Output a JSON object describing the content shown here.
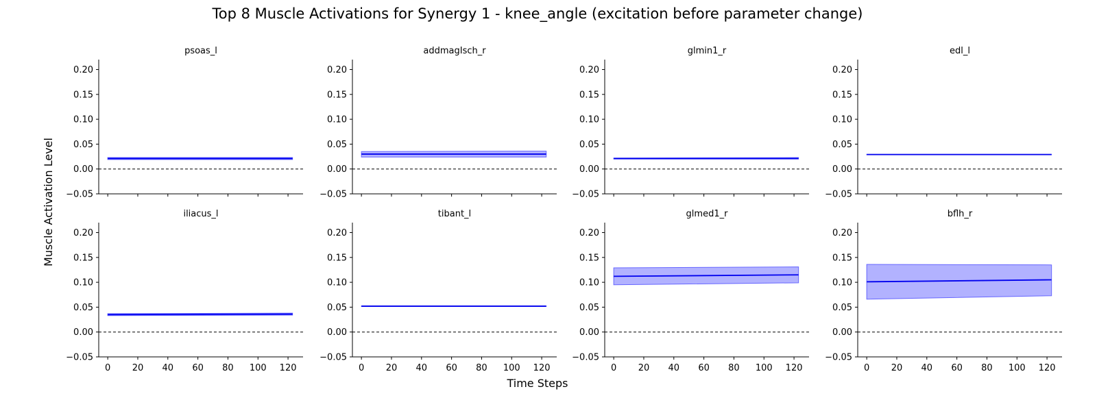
{
  "chart_data": {
    "type": "line",
    "title": "Top 8 Muscle Activations for Synergy 1 - knee_angle (excitation before parameter change)",
    "xlabel": "Time Steps",
    "ylabel": "Muscle Activation Level",
    "xlim": [
      -6,
      130
    ],
    "ylim": [
      -0.05,
      0.22
    ],
    "x_ticks": [
      0,
      20,
      40,
      60,
      80,
      100,
      120
    ],
    "y_ticks": [
      -0.05,
      0.0,
      0.05,
      0.1,
      0.15,
      0.2
    ],
    "y_tick_labels": [
      "−0.05",
      "0.00",
      "0.05",
      "0.10",
      "0.15",
      "0.20"
    ],
    "x_range": [
      0,
      123
    ],
    "reference_line": 0.0,
    "line_color": "#0000ee",
    "band_color": "#6666ff",
    "grid": false,
    "shared_x": true,
    "layout": {
      "rows": 2,
      "cols": 4
    },
    "subplots": [
      {
        "name": "psoas_l",
        "mean": [
          0.021,
          0.021
        ],
        "upper": [
          0.023,
          0.023
        ],
        "lower": [
          0.019,
          0.019
        ]
      },
      {
        "name": "addmagIsch_r",
        "mean": [
          0.03,
          0.03
        ],
        "upper": [
          0.035,
          0.036
        ],
        "lower": [
          0.024,
          0.024
        ]
      },
      {
        "name": "glmin1_r",
        "mean": [
          0.021,
          0.021
        ],
        "upper": [
          0.022,
          0.023
        ],
        "lower": [
          0.02,
          0.02
        ]
      },
      {
        "name": "edl_l",
        "mean": [
          0.029,
          0.029
        ],
        "upper": [
          0.0295,
          0.0295
        ],
        "lower": [
          0.0285,
          0.0285
        ]
      },
      {
        "name": "iliacus_l",
        "mean": [
          0.035,
          0.036
        ],
        "upper": [
          0.037,
          0.038
        ],
        "lower": [
          0.033,
          0.034
        ]
      },
      {
        "name": "tibant_l",
        "mean": [
          0.052,
          0.052
        ],
        "upper": [
          0.0525,
          0.0525
        ],
        "lower": [
          0.0515,
          0.0515
        ]
      },
      {
        "name": "glmed1_r",
        "mean": [
          0.112,
          0.115
        ],
        "upper": [
          0.129,
          0.131
        ],
        "lower": [
          0.095,
          0.099
        ]
      },
      {
        "name": "bflh_r",
        "mean": [
          0.101,
          0.105
        ],
        "upper": [
          0.136,
          0.135
        ],
        "lower": [
          0.066,
          0.073
        ]
      }
    ]
  }
}
